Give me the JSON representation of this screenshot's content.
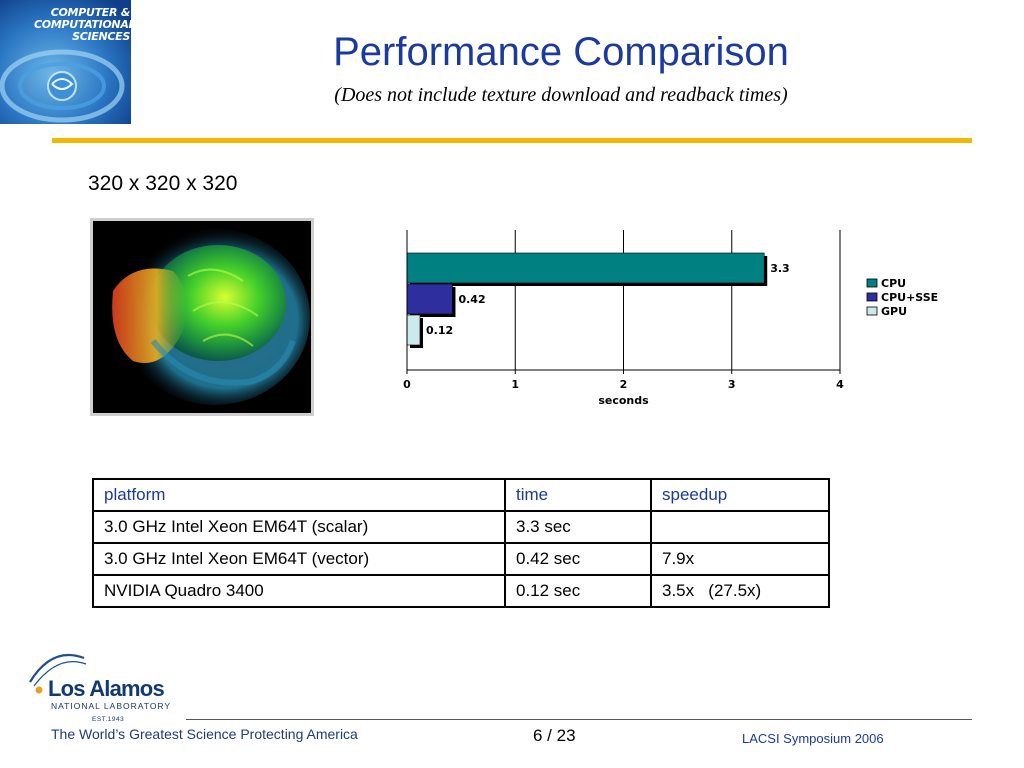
{
  "header": {
    "logo_text": [
      "COMPUTER &",
      "COMPUTATIONAL",
      "SCIENCES"
    ],
    "title": "Performance Comparison",
    "subtitle": "(Does not include texture download and readback times)"
  },
  "problem_size": "320 x 320 x 320",
  "chart_data": {
    "type": "bar",
    "orientation": "horizontal",
    "categories": [
      "CPU",
      "CPU+SSE",
      "GPU"
    ],
    "series": [
      {
        "name": "CPU",
        "value": 3.3,
        "label": "3.3",
        "color": "#008080"
      },
      {
        "name": "CPU+SSE",
        "value": 0.42,
        "label": "0.42",
        "color": "#2e2e9e"
      },
      {
        "name": "GPU",
        "value": 0.12,
        "label": "0.12",
        "color": "#cce9ec"
      }
    ],
    "xlabel": "seconds",
    "xlim": [
      0,
      4
    ],
    "xticks": [
      "0",
      "1",
      "2",
      "3",
      "4"
    ],
    "grid": true,
    "legend_position": "right"
  },
  "table": {
    "headers": [
      "platform",
      "time",
      "speedup"
    ],
    "rows": [
      [
        "3.0 GHz Intel Xeon EM64T (scalar)",
        "3.3 sec",
        ""
      ],
      [
        "3.0 GHz Intel Xeon EM64T (vector)",
        "0.42 sec",
        "7.9x"
      ],
      [
        "NVIDIA Quadro 3400",
        "0.12 sec",
        "3.5x   (27.5x)"
      ]
    ]
  },
  "footer": {
    "lab_name": "Los Alamos",
    "lab_subtitle": "NATIONAL LABORATORY",
    "lab_est": "EST.1943",
    "tagline": "The World’s Greatest Science Protecting America",
    "page_number": "6 / 23",
    "event": "LACSI Symposium 2006"
  }
}
